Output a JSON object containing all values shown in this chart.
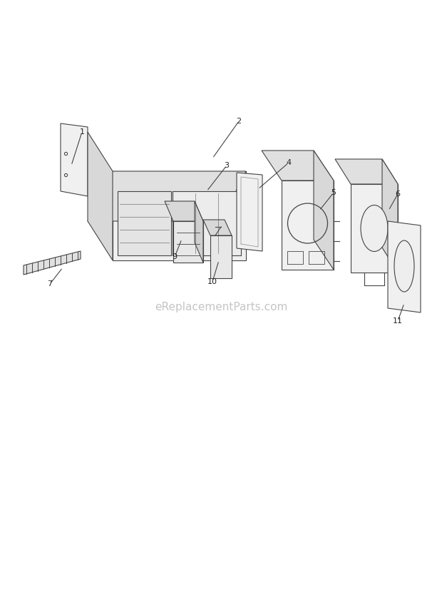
{
  "bg_color": "#ffffff",
  "line_color": "#444444",
  "watermark_text": "eReplacementParts.com",
  "watermark_color": "#bbbbbb",
  "watermark_fontsize": 11,
  "fig_w": 6.2,
  "fig_h": 8.27,
  "dpi": 100
}
